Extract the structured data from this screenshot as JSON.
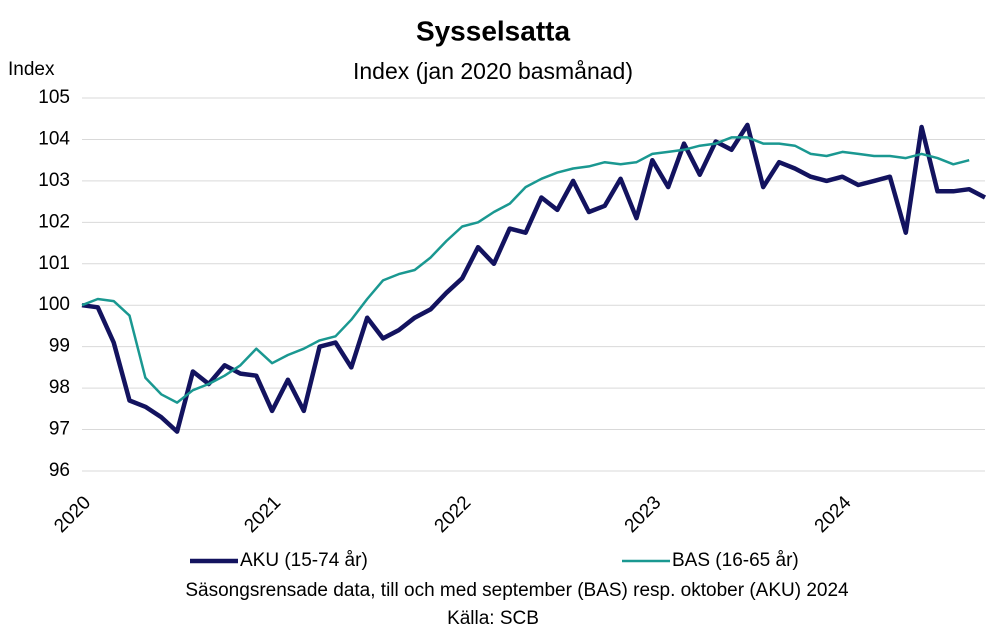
{
  "chart_data": {
    "type": "line",
    "title": "Sysselsatta",
    "subtitle": "Index (jan 2020 basmånad)",
    "y_label": "Index",
    "note": "Säsongsrensade data, till och med september (BAS) resp. oktober (AKU) 2024",
    "source": "Källa: SCB",
    "categories": [
      "2020",
      null,
      null,
      null,
      null,
      null,
      null,
      null,
      null,
      null,
      null,
      null,
      "2021",
      null,
      null,
      null,
      null,
      null,
      null,
      null,
      null,
      null,
      null,
      null,
      "2022",
      null,
      null,
      null,
      null,
      null,
      null,
      null,
      null,
      null,
      null,
      null,
      "2023",
      null,
      null,
      null,
      null,
      null,
      null,
      null,
      null,
      null,
      null,
      null,
      "2024",
      null,
      null,
      null,
      null,
      null,
      null,
      null,
      null,
      null
    ],
    "series": [
      {
        "name": "AKU (15-74 år)",
        "color": "#13135f",
        "values": [
          100.0,
          99.95,
          99.1,
          97.7,
          97.55,
          97.3,
          96.95,
          98.4,
          98.1,
          98.55,
          98.35,
          98.3,
          97.45,
          98.2,
          97.45,
          99.0,
          99.1,
          98.5,
          99.7,
          99.2,
          99.4,
          99.7,
          99.9,
          100.3,
          100.65,
          101.4,
          101.0,
          101.85,
          101.75,
          102.6,
          102.3,
          103.0,
          102.25,
          102.4,
          103.05,
          102.1,
          103.5,
          102.85,
          103.9,
          103.15,
          103.95,
          103.75,
          104.35,
          102.85,
          103.45,
          103.3,
          103.1,
          103.0,
          103.1,
          102.9,
          103.0,
          103.1,
          101.75,
          104.3,
          102.75,
          102.75,
          102.8,
          102.6
        ]
      },
      {
        "name": "BAS (16-65 år)",
        "color": "#1a9891",
        "values": [
          100.0,
          100.15,
          100.1,
          99.75,
          98.25,
          97.85,
          97.65,
          97.95,
          98.1,
          98.3,
          98.55,
          98.95,
          98.6,
          98.8,
          98.95,
          99.15,
          99.25,
          99.65,
          100.15,
          100.6,
          100.75,
          100.85,
          101.15,
          101.55,
          101.9,
          102.0,
          102.25,
          102.45,
          102.85,
          103.05,
          103.2,
          103.3,
          103.35,
          103.45,
          103.4,
          103.45,
          103.65,
          103.7,
          103.75,
          103.85,
          103.9,
          104.05,
          104.05,
          103.9,
          103.9,
          103.85,
          103.65,
          103.6,
          103.7,
          103.65,
          103.6,
          103.6,
          103.55,
          103.65,
          103.55,
          103.4,
          103.5,
          null
        ]
      }
    ],
    "ylim": [
      96,
      105
    ],
    "yticks": [
      96,
      97,
      98,
      99,
      100,
      101,
      102,
      103,
      104,
      105
    ],
    "grid": true,
    "legend": "bottom"
  }
}
